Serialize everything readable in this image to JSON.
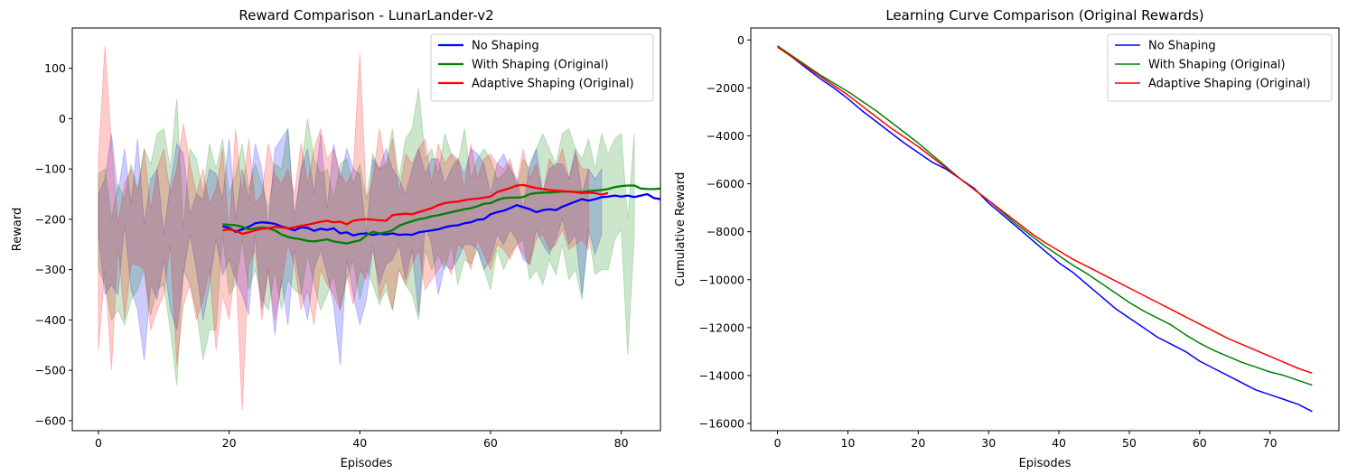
{
  "chart_data": [
    {
      "type": "line",
      "title": "Reward Comparison - LunarLander-v2",
      "xlabel": "Episodes",
      "ylabel": "Reward",
      "xlim": [
        -4,
        86
      ],
      "ylim": [
        -620,
        180
      ],
      "xticks": [
        0,
        20,
        40,
        60,
        80
      ],
      "yticks": [
        100,
        0,
        -100,
        -200,
        -300,
        -400,
        -500,
        -600
      ],
      "grid": false,
      "legend_position": "top-right",
      "legend": [
        "No Shaping",
        "With Shaping (Original)",
        "Adaptive Shaping (Original)"
      ],
      "series": [
        {
          "name": "No Shaping",
          "color": "#0000ff",
          "x_start": 19,
          "values": [
            -214,
            -217,
            -225,
            -220,
            -215,
            -208,
            -206,
            -207,
            -209,
            -214,
            -218,
            -222,
            -216,
            -217,
            -223,
            -219,
            -221,
            -218,
            -228,
            -226,
            -232,
            -229,
            -228,
            -231,
            -229,
            -230,
            -228,
            -231,
            -230,
            -231,
            -226,
            -224,
            -222,
            -220,
            -216,
            -213,
            -212,
            -208,
            -206,
            -201,
            -200,
            -190,
            -186,
            -183,
            -178,
            -172,
            -176,
            -180,
            -186,
            -182,
            -180,
            -182,
            -175,
            -170,
            -165,
            -160,
            -163,
            -160,
            -156,
            -155,
            -153,
            -155,
            -153,
            -156,
            -153,
            -150,
            -158,
            -160
          ]
        },
        {
          "name": "With Shaping (Original)",
          "color": "#008000",
          "x_start": 19,
          "values": [
            -210,
            -211,
            -212,
            -215,
            -220,
            -218,
            -216,
            -218,
            -222,
            -230,
            -235,
            -238,
            -240,
            -243,
            -244,
            -242,
            -240,
            -244,
            -246,
            -248,
            -245,
            -242,
            -232,
            -225,
            -228,
            -226,
            -222,
            -213,
            -208,
            -204,
            -200,
            -198,
            -194,
            -192,
            -189,
            -186,
            -183,
            -180,
            -178,
            -174,
            -169,
            -168,
            -162,
            -158,
            -157,
            -157,
            -156,
            -150,
            -148,
            -147,
            -147,
            -146,
            -145,
            -145,
            -146,
            -146,
            -144,
            -143,
            -142,
            -140,
            -136,
            -134,
            -133,
            -133,
            -139,
            -140,
            -140,
            -139,
            -138,
            -137,
            -136,
            -136,
            -135,
            -134,
            -141,
            -145,
            -146
          ]
        },
        {
          "name": "Adaptive Shaping (Original)",
          "color": "#ff0000",
          "x_start": 19,
          "values": [
            -222,
            -220,
            -223,
            -229,
            -226,
            -222,
            -219,
            -218,
            -215,
            -216,
            -218,
            -216,
            -213,
            -211,
            -208,
            -205,
            -203,
            -206,
            -205,
            -210,
            -203,
            -201,
            -200,
            -201,
            -202,
            -203,
            -192,
            -190,
            -189,
            -190,
            -186,
            -182,
            -178,
            -172,
            -168,
            -166,
            -165,
            -162,
            -160,
            -159,
            -157,
            -155,
            -146,
            -142,
            -138,
            -133,
            -132,
            -135,
            -138,
            -140,
            -142,
            -143,
            -144,
            -145,
            -146,
            -148,
            -147,
            -148,
            -151,
            -148
          ]
        }
      ],
      "bands": [
        {
          "series": "No Shaping",
          "color": "#0000ff",
          "upper": [
            -150,
            -120,
            -30,
            -150,
            -60,
            -170,
            -40,
            -210,
            -120,
            -100,
            -230,
            -130,
            -50,
            -70,
            -190,
            -150,
            -160,
            -100,
            -110,
            -160,
            -40,
            -200,
            -100,
            -160,
            -50,
            -100,
            -220,
            -60,
            -40,
            -20,
            -190,
            -100,
            -60,
            -150,
            -30,
            -180,
            -50,
            -120,
            -60,
            -100,
            -110,
            -230,
            -80,
            -100,
            -60,
            -100,
            -120,
            -150,
            -100,
            -60,
            -110,
            -80,
            -80,
            -130,
            -100,
            -80,
            -110,
            -60,
            -70,
            -90,
            -150,
            -90,
            -70,
            -100,
            -120,
            -180,
            -90,
            -60,
            -150,
            -100,
            -90,
            -90,
            -120,
            -60,
            -150,
            -100,
            -120,
            -100
          ],
          "lower": [
            -230,
            -350,
            -330,
            -350,
            -210,
            -340,
            -380,
            -480,
            -330,
            -360,
            -280,
            -380,
            -420,
            -310,
            -230,
            -300,
            -400,
            -330,
            -240,
            -310,
            -280,
            -320,
            -350,
            -390,
            -230,
            -380,
            -300,
            -430,
            -320,
            -410,
            -260,
            -340,
            -400,
            -300,
            -260,
            -310,
            -370,
            -490,
            -280,
            -350,
            -410,
            -360,
            -260,
            -330,
            -290,
            -280,
            -250,
            -320,
            -260,
            -390,
            -210,
            -250,
            -350,
            -290,
            -300,
            -280,
            -250,
            -250,
            -260,
            -300,
            -280,
            -230,
            -250,
            -220,
            -240,
            -280,
            -290,
            -220,
            -250,
            -270,
            -240,
            -200,
            -250,
            -230,
            -350,
            -220,
            -270,
            -230
          ]
        },
        {
          "series": "With Shaping (Original)",
          "color": "#008000",
          "upper": [
            -110,
            -100,
            -200,
            -130,
            -160,
            -90,
            -140,
            -60,
            -90,
            -30,
            -20,
            -100,
            40,
            -220,
            -60,
            -80,
            -150,
            -50,
            -100,
            -40,
            -150,
            -110,
            -50,
            -140,
            -90,
            -130,
            -180,
            -90,
            -100,
            -20,
            -210,
            -100,
            0,
            -80,
            -110,
            -100,
            -160,
            -90,
            -80,
            -130,
            -90,
            -160,
            -70,
            -100,
            -90,
            -20,
            -120,
            -40,
            -20,
            60,
            -80,
            -60,
            -110,
            -30,
            -70,
            -90,
            -20,
            -120,
            -80,
            -60,
            -80,
            -120,
            -110,
            -90,
            -140,
            -80,
            -100,
            -60,
            -30,
            -60,
            -90,
            -30,
            -20,
            -60,
            -80,
            -40,
            -100,
            -30,
            -70,
            -40,
            -30,
            -200,
            -30
          ],
          "lower": [
            -300,
            -330,
            -400,
            -380,
            -410,
            -360,
            -340,
            -300,
            -390,
            -340,
            -330,
            -420,
            -530,
            -300,
            -330,
            -380,
            -480,
            -420,
            -420,
            -230,
            -350,
            -330,
            -240,
            -340,
            -300,
            -360,
            -380,
            -300,
            -380,
            -320,
            -340,
            -350,
            -270,
            -330,
            -380,
            -350,
            -310,
            -380,
            -320,
            -280,
            -360,
            -300,
            -330,
            -370,
            -340,
            -380,
            -300,
            -330,
            -350,
            -400,
            -260,
            -300,
            -270,
            -300,
            -250,
            -330,
            -280,
            -290,
            -260,
            -300,
            -340,
            -260,
            -300,
            -270,
            -250,
            -240,
            -320,
            -300,
            -330,
            -280,
            -310,
            -250,
            -320,
            -300,
            -360,
            -230,
            -310,
            -300,
            -300,
            -240,
            -220,
            -470,
            -230
          ]
        },
        {
          "series": "Adaptive Shaping (Original)",
          "color": "#ff0000",
          "upper": [
            -80,
            145,
            -50,
            -210,
            -130,
            -100,
            -150,
            -60,
            -180,
            -100,
            -60,
            -150,
            -100,
            -10,
            -90,
            -150,
            -100,
            -170,
            -140,
            -60,
            -230,
            -20,
            -150,
            -40,
            -170,
            -150,
            -50,
            -110,
            -130,
            -100,
            -150,
            -50,
            -130,
            -60,
            -20,
            -80,
            -60,
            -110,
            -130,
            -100,
            130,
            -160,
            -120,
            -20,
            -100,
            -40,
            -150,
            -70,
            -90,
            -60,
            -40,
            -130,
            -50,
            -90,
            -70,
            -80,
            -140,
            -50,
            -120,
            -80,
            -70,
            -90,
            -100,
            -80,
            -130,
            -60,
            -120,
            -90,
            -150,
            -80,
            -100,
            -60,
            -120,
            -70,
            -100,
            -100
          ],
          "lower": [
            -460,
            -300,
            -500,
            -250,
            -400,
            -290,
            -290,
            -300,
            -420,
            -380,
            -350,
            -250,
            -490,
            -370,
            -330,
            -400,
            -360,
            -300,
            -460,
            -350,
            -400,
            -290,
            -580,
            -290,
            -260,
            -400,
            -300,
            -400,
            -330,
            -250,
            -290,
            -380,
            -340,
            -410,
            -300,
            -330,
            -350,
            -380,
            -310,
            -370,
            -300,
            -320,
            -250,
            -360,
            -320,
            -380,
            -300,
            -330,
            -290,
            -260,
            -340,
            -320,
            -300,
            -280,
            -310,
            -250,
            -260,
            -300,
            -240,
            -270,
            -300,
            -250,
            -260,
            -280,
            -250,
            -270,
            -290,
            -240,
            -230,
            -260,
            -250,
            -220,
            -260,
            -250,
            -240,
            -260
          ]
        }
      ]
    },
    {
      "type": "line",
      "title": "Learning Curve Comparison (Original Rewards)",
      "xlabel": "Episodes",
      "ylabel": "Cumulative Reward",
      "xlim": [
        -3.8,
        79.8
      ],
      "ylim": [
        -16300,
        500
      ],
      "xticks": [
        0,
        10,
        20,
        30,
        40,
        50,
        60,
        70
      ],
      "yticks": [
        0,
        -2000,
        -4000,
        -6000,
        -8000,
        -10000,
        -12000,
        -14000,
        -16000
      ],
      "grid": false,
      "legend_position": "top-right",
      "legend": [
        "No Shaping",
        "With Shaping (Original)",
        "Adaptive Shaping (Original)"
      ],
      "series": [
        {
          "name": "No Shaping",
          "color": "#0000ff",
          "x": [
            0,
            2,
            4,
            6,
            8,
            10,
            12,
            14,
            16,
            18,
            20,
            22,
            24,
            26,
            28,
            30,
            32,
            34,
            36,
            38,
            40,
            42,
            44,
            46,
            48,
            50,
            52,
            54,
            56,
            58,
            60,
            62,
            64,
            66,
            68,
            70,
            72,
            74,
            76
          ],
          "values": [
            -250,
            -700,
            -1150,
            -1600,
            -2000,
            -2450,
            -2950,
            -3400,
            -3850,
            -4300,
            -4700,
            -5100,
            -5400,
            -5800,
            -6200,
            -6800,
            -7300,
            -7800,
            -8300,
            -8800,
            -9300,
            -9700,
            -10200,
            -10700,
            -11200,
            -11600,
            -12000,
            -12400,
            -12700,
            -13000,
            -13400,
            -13700,
            -14000,
            -14300,
            -14600,
            -14800,
            -15000,
            -15200,
            -15500
          ]
        },
        {
          "name": "With Shaping (Original)",
          "color": "#008000",
          "x": [
            0,
            2,
            4,
            6,
            8,
            10,
            12,
            14,
            16,
            18,
            20,
            22,
            24,
            26,
            28,
            30,
            32,
            34,
            36,
            38,
            40,
            42,
            44,
            46,
            48,
            50,
            52,
            54,
            56,
            58,
            60,
            62,
            64,
            66,
            68,
            70,
            72,
            74,
            76
          ],
          "values": [
            -250,
            -650,
            -1050,
            -1450,
            -1800,
            -2150,
            -2550,
            -2950,
            -3400,
            -3850,
            -4300,
            -4800,
            -5300,
            -5800,
            -6250,
            -6700,
            -7200,
            -7700,
            -8150,
            -8600,
            -9000,
            -9400,
            -9750,
            -10150,
            -10550,
            -10950,
            -11300,
            -11600,
            -11900,
            -12300,
            -12650,
            -12950,
            -13200,
            -13450,
            -13650,
            -13850,
            -14000,
            -14200,
            -14400
          ]
        },
        {
          "name": "Adaptive Shaping (Original)",
          "color": "#ff0000",
          "x": [
            0,
            2,
            4,
            6,
            8,
            10,
            12,
            14,
            16,
            18,
            20,
            22,
            24,
            26,
            28,
            30,
            32,
            34,
            36,
            38,
            40,
            42,
            44,
            46,
            48,
            50,
            52,
            54,
            56,
            58,
            60,
            62,
            64,
            66,
            68,
            70,
            72,
            74,
            76
          ],
          "values": [
            -300,
            -700,
            -1100,
            -1500,
            -1900,
            -2300,
            -2750,
            -3200,
            -3650,
            -4050,
            -4450,
            -4900,
            -5350,
            -5800,
            -6250,
            -6700,
            -7150,
            -7600,
            -8050,
            -8450,
            -8800,
            -9150,
            -9450,
            -9750,
            -10050,
            -10350,
            -10650,
            -10950,
            -11250,
            -11550,
            -11850,
            -12150,
            -12450,
            -12700,
            -12950,
            -13200,
            -13450,
            -13700,
            -13900
          ]
        }
      ]
    }
  ]
}
